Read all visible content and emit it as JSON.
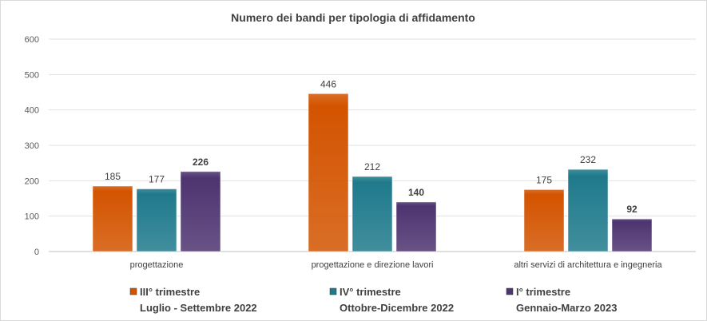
{
  "chart_data": {
    "type": "bar",
    "title": "Numero dei bandi per tipologia di affidamento",
    "categories": [
      "progettazione",
      "progettazione e direzione lavori",
      "altri servizi di architettura e ingegneria"
    ],
    "series": [
      {
        "name": "III° trimestre",
        "subtitle": "Luglio - Settembre 2022",
        "color": "#d35400",
        "values": [
          185,
          446,
          175
        ],
        "bold_labels": false
      },
      {
        "name": "IV° trimestre",
        "subtitle": "Ottobre-Dicembre 2022",
        "color": "#1f7a8c",
        "values": [
          177,
          212,
          232
        ],
        "bold_labels": false
      },
      {
        "name": "I° trimestre",
        "subtitle": "Gennaio-Marzo 2023",
        "color": "#4e3470",
        "values": [
          226,
          140,
          92
        ],
        "bold_labels": true
      }
    ],
    "ylim": [
      0,
      600
    ],
    "yticks": [
      0,
      100,
      200,
      300,
      400,
      500,
      600
    ],
    "grid": true,
    "legend": "bottom",
    "xlabel": "",
    "ylabel": ""
  }
}
